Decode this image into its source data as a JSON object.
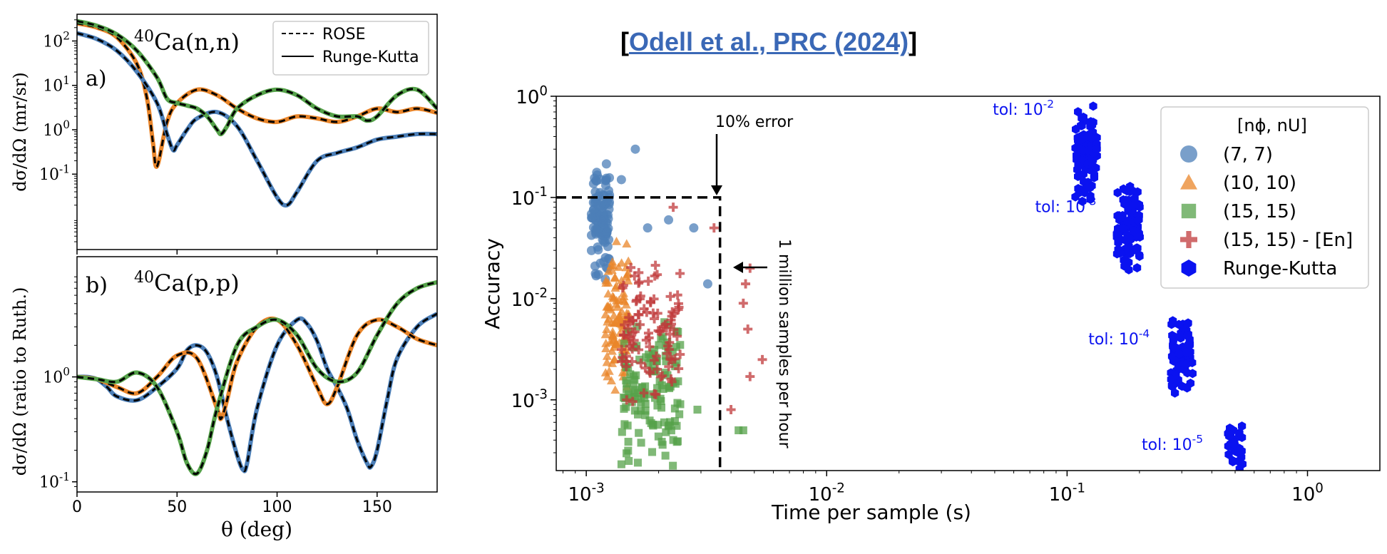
{
  "citation": {
    "open": "[",
    "text": "Odell et al., PRC (2024)",
    "close": "]"
  },
  "colors": {
    "blue": "#4c7fb8",
    "orange": "#e9852a",
    "green": "#55a24a",
    "red": "#c0393b",
    "rk": "#0a12f0",
    "black": "#000000"
  },
  "chart_data": [
    {
      "id": "a",
      "type": "line",
      "panel_label": "a)",
      "title": "40Ca(n,n)",
      "title_sup": "40",
      "title_rest": "Ca(n,n)",
      "ylabel": "dσ/dΩ (mr/sr)",
      "xlabel": "",
      "xlim": [
        0,
        180
      ],
      "ylim": [
        0.002,
        400
      ],
      "yscale": "log",
      "yticks": [
        {
          "v": 0.1,
          "label": "10",
          "sup": "-1"
        },
        {
          "v": 1,
          "label": "10",
          "sup": "0"
        },
        {
          "v": 10,
          "label": "10",
          "sup": "1"
        },
        {
          "v": 100,
          "label": "10",
          "sup": "2"
        }
      ],
      "xticks": [
        0,
        50,
        100,
        150
      ],
      "legend": {
        "position": "top-right",
        "entries": [
          {
            "label": "ROSE",
            "style": "dashed"
          },
          {
            "label": "Runge-Kutta",
            "style": "solid"
          }
        ]
      },
      "series": [
        {
          "color": "orange",
          "x": [
            0,
            10,
            20,
            30,
            35,
            38,
            40,
            45,
            50,
            60,
            70,
            80,
            90,
            100,
            110,
            120,
            130,
            140,
            150,
            160,
            170,
            180
          ],
          "y": [
            250,
            200,
            120,
            30,
            5,
            0.5,
            0.15,
            1.5,
            4,
            8,
            6,
            3,
            1.8,
            1.5,
            2,
            1.8,
            1.5,
            2,
            3,
            2.5,
            3,
            2.4
          ]
        },
        {
          "color": "blue",
          "x": [
            0,
            10,
            20,
            30,
            40,
            45,
            48,
            50,
            55,
            60,
            70,
            80,
            90,
            100,
            105,
            110,
            120,
            130,
            140,
            150,
            160,
            170,
            180
          ],
          "y": [
            150,
            110,
            60,
            20,
            4,
            0.8,
            0.35,
            0.45,
            1,
            1.8,
            2.5,
            1.2,
            0.2,
            0.03,
            0.02,
            0.04,
            0.2,
            0.3,
            0.4,
            0.6,
            0.7,
            0.8,
            0.8
          ]
        },
        {
          "color": "green",
          "x": [
            0,
            10,
            20,
            30,
            40,
            45,
            50,
            55,
            60,
            65,
            70,
            72,
            75,
            80,
            90,
            100,
            110,
            120,
            130,
            140,
            145,
            150,
            160,
            170,
            180
          ],
          "y": [
            280,
            220,
            140,
            60,
            15,
            5,
            4,
            3.5,
            3,
            2,
            1,
            0.8,
            1.2,
            3,
            6,
            8,
            6,
            3,
            2,
            2,
            1.6,
            2,
            6,
            8,
            3
          ]
        }
      ]
    },
    {
      "id": "b",
      "type": "line",
      "panel_label": "b)",
      "title": "40Ca(p,p)",
      "title_sup": "40",
      "title_rest": "Ca(p,p)",
      "ylabel": "dσ/dΩ (ratio to Ruth.)",
      "xlabel": "θ (deg)",
      "xlim": [
        0,
        180
      ],
      "ylim": [
        0.08,
        14
      ],
      "yscale": "log",
      "yticks": [
        {
          "v": 0.1,
          "label": "10",
          "sup": "-1"
        },
        {
          "v": 1,
          "label": "10",
          "sup": "0"
        }
      ],
      "xticks": [
        0,
        50,
        100,
        150
      ],
      "series": [
        {
          "color": "blue",
          "x": [
            0,
            5,
            10,
            15,
            20,
            30,
            40,
            50,
            55,
            60,
            65,
            70,
            75,
            80,
            83,
            85,
            90,
            100,
            110,
            115,
            120,
            125,
            130,
            135,
            140,
            145,
            147,
            150,
            155,
            160,
            170,
            180
          ],
          "y": [
            1,
            1,
            0.95,
            0.8,
            0.65,
            0.6,
            0.8,
            1.2,
            1.8,
            2,
            1.7,
            1,
            0.4,
            0.18,
            0.13,
            0.15,
            0.5,
            2,
            3.5,
            3.2,
            2.2,
            1.2,
            0.8,
            0.5,
            0.25,
            0.15,
            0.14,
            0.2,
            0.6,
            1.5,
            3,
            4
          ]
        },
        {
          "color": "orange",
          "x": [
            0,
            10,
            20,
            30,
            40,
            50,
            60,
            70,
            72,
            75,
            80,
            90,
            100,
            110,
            120,
            125,
            130,
            140,
            150,
            160,
            170,
            180
          ],
          "y": [
            1,
            0.95,
            0.8,
            0.7,
            1,
            1.6,
            1.5,
            0.5,
            0.4,
            0.6,
            1.4,
            3,
            3.5,
            2,
            0.8,
            0.55,
            0.8,
            2.5,
            3.5,
            3,
            2.3,
            2
          ]
        },
        {
          "color": "green",
          "x": [
            0,
            10,
            20,
            30,
            40,
            50,
            55,
            60,
            65,
            70,
            80,
            90,
            100,
            110,
            120,
            130,
            140,
            150,
            160,
            170,
            180
          ],
          "y": [
            1,
            0.95,
            0.9,
            1.1,
            0.8,
            0.3,
            0.15,
            0.12,
            0.2,
            0.5,
            2,
            3,
            3.5,
            2.5,
            1.2,
            0.9,
            1.1,
            2.5,
            5,
            7,
            8
          ]
        }
      ]
    },
    {
      "id": "c",
      "type": "scatter",
      "xlabel": "Time per sample (s)",
      "ylabel": "Accuracy",
      "xscale": "log",
      "yscale": "log",
      "xlim": [
        0.00075,
        2
      ],
      "ylim": [
        0.0002,
        1
      ],
      "xticks": [
        {
          "v": 0.001,
          "label": "10",
          "sup": "-3"
        },
        {
          "v": 0.01,
          "label": "10",
          "sup": "-2"
        },
        {
          "v": 0.1,
          "label": "10",
          "sup": "-1"
        },
        {
          "v": 1,
          "label": "10",
          "sup": "0"
        }
      ],
      "yticks": [
        {
          "v": 0.001,
          "label": "10",
          "sup": "-3"
        },
        {
          "v": 0.01,
          "label": "10",
          "sup": "-2"
        },
        {
          "v": 0.1,
          "label": "10",
          "sup": "-1"
        },
        {
          "v": 1,
          "label": "10",
          "sup": "0"
        }
      ],
      "legend": {
        "position": "top-right",
        "title": "[nϕ, nU]",
        "entries": [
          {
            "label": "(7, 7)",
            "marker": "circle",
            "color": "blue"
          },
          {
            "label": "(10, 10)",
            "marker": "triangle",
            "color": "orange"
          },
          {
            "label": "(15, 15)",
            "marker": "square",
            "color": "green"
          },
          {
            "label": "(15, 15) - [En]",
            "marker": "plus",
            "color": "red"
          },
          {
            "label": "Runge-Kutta",
            "marker": "hexagon",
            "color": "rk"
          }
        ]
      },
      "annotations": [
        {
          "text": "10% error"
        },
        {
          "text": "1 million samples per hour"
        }
      ],
      "threshold": {
        "x": 0.0036,
        "y": 0.1
      },
      "clusters": [
        {
          "marker": "circle",
          "color": "blue",
          "count": 110,
          "xmin": 0.00105,
          "xmax": 0.00125,
          "ymin": 0.012,
          "ymax": 0.3,
          "outliers": [
            [
              0.0016,
              0.3
            ],
            [
              0.0014,
              0.15
            ],
            [
              0.0018,
              0.05
            ],
            [
              0.0022,
              0.06
            ],
            [
              0.0032,
              0.014
            ],
            [
              0.0028,
              0.05
            ]
          ]
        },
        {
          "marker": "triangle",
          "color": "orange",
          "count": 110,
          "xmin": 0.0012,
          "xmax": 0.0015,
          "ymin": 0.001,
          "ymax": 0.04,
          "outliers": []
        },
        {
          "marker": "square",
          "color": "green",
          "count": 130,
          "xmin": 0.0014,
          "xmax": 0.0025,
          "ymin": 0.0002,
          "ymax": 0.008,
          "outliers": [
            [
              0.0045,
              0.0005
            ],
            [
              0.0043,
              0.0005
            ],
            [
              0.0029,
              0.0008
            ]
          ]
        },
        {
          "marker": "plus",
          "color": "red",
          "count": 100,
          "xmin": 0.0014,
          "xmax": 0.0025,
          "ymin": 0.0008,
          "ymax": 0.03,
          "outliers": [
            [
              0.0023,
              0.08
            ],
            [
              0.0034,
              0.05
            ],
            [
              0.0048,
              0.02
            ],
            [
              0.0046,
              0.014
            ],
            [
              0.0045,
              0.009
            ],
            [
              0.0047,
              0.005
            ],
            [
              0.0054,
              0.0025
            ],
            [
              0.0048,
              0.0017
            ],
            [
              0.004,
              0.0008
            ]
          ]
        }
      ],
      "rk_clusters": [
        {
          "tol_label": "tol: 10",
          "tol_sup": "-2",
          "x": 0.12,
          "xspread": 0.012,
          "ymin": 0.08,
          "ymax": 0.9,
          "count": 90
        },
        {
          "tol_label": "tol: 10",
          "tol_sup": "-3",
          "x": 0.18,
          "xspread": 0.02,
          "ymin": 0.018,
          "ymax": 0.15,
          "count": 90
        },
        {
          "tol_label": "tol: 10",
          "tol_sup": "-4",
          "x": 0.3,
          "xspread": 0.03,
          "ymin": 0.0011,
          "ymax": 0.007,
          "count": 90
        },
        {
          "tol_label": "tol: 10",
          "tol_sup": "-5",
          "x": 0.5,
          "xspread": 0.035,
          "ymin": 0.0002,
          "ymax": 0.0006,
          "count": 35
        }
      ]
    }
  ]
}
